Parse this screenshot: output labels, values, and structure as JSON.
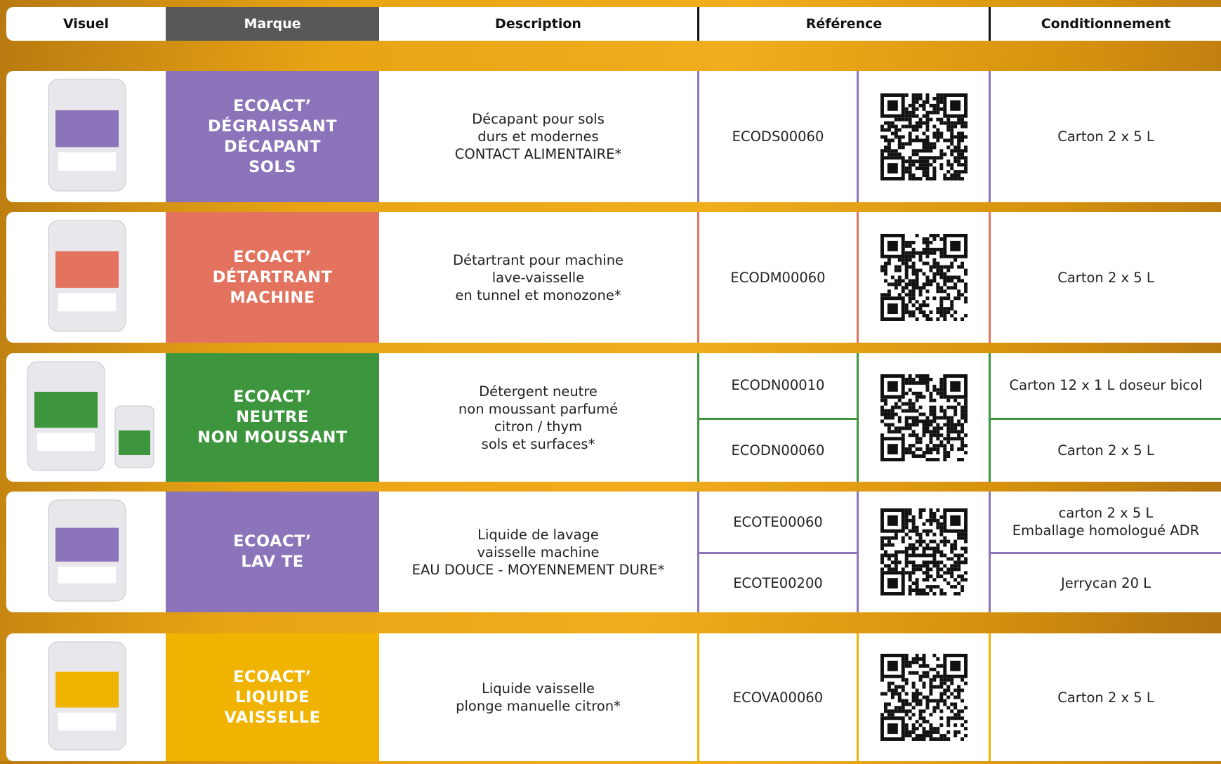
{
  "header": {
    "columns": [
      "Visuel",
      "Marque",
      "Description",
      "Référence",
      "Conditionnement"
    ]
  },
  "rows": [
    {
      "color": "#8b74b9",
      "brand": [
        "ECOACT’",
        "DÉGRAISSANT",
        "DÉCAPANT",
        "SOLS"
      ],
      "description": [
        "Décapant pour sols",
        "durs et modernes",
        "CONTACT ALIMENTAIRE*"
      ],
      "references": [
        "ECODS00060"
      ],
      "packaging": [
        [
          "Carton 2 x 5 L"
        ]
      ]
    },
    {
      "color": "#e3735f",
      "brand": [
        "ECOACT’",
        "DÉTARTRANT",
        "MACHINE"
      ],
      "description": [
        "Détartrant pour machine",
        "lave-vaisselle",
        "en tunnel et monozone*"
      ],
      "references": [
        "ECODM00060"
      ],
      "packaging": [
        [
          "Carton 2 x 5 L"
        ]
      ]
    },
    {
      "color": "#3d963d",
      "brand": [
        "ECOACT’",
        "NEUTRE",
        "NON MOUSSANT"
      ],
      "description": [
        "Détergent neutre",
        "non moussant parfumé",
        "citron / thym",
        "sols et surfaces*"
      ],
      "references": [
        "ECODN00010",
        "ECODN00060"
      ],
      "packaging": [
        [
          "Carton 12 x 1 L doseur bicol"
        ],
        [
          "Carton 2 x 5 L"
        ]
      ]
    },
    {
      "color": "#8b74b9",
      "brand": [
        "ECOACT’",
        "LAV TE"
      ],
      "description": [
        "Liquide de lavage",
        "vaisselle machine",
        "EAU DOUCE - MOYENNEMENT DURE*"
      ],
      "references": [
        "ECOTE00060",
        "ECOTE00200"
      ],
      "packaging": [
        [
          "carton 2 x 5 L",
          "Emballage homologué ADR"
        ],
        [
          "Jerrycan 20 L"
        ]
      ]
    },
    {
      "color": "#f0b400",
      "brand": [
        "ECOACT’",
        "LIQUIDE",
        "VAISSELLE"
      ],
      "description": [
        "Liquide vaisselle",
        "plonge manuelle citron*"
      ],
      "references": [
        "ECOVA00060"
      ],
      "packaging": [
        [
          "Carton 2 x 5 L"
        ]
      ]
    }
  ]
}
